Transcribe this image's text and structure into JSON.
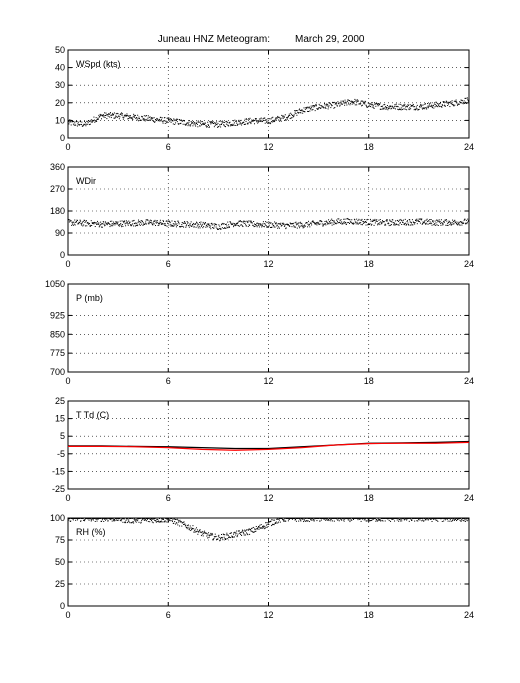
{
  "title_station": "Juneau HNZ Meteogram:",
  "title_date": "March 29, 2000",
  "chart_data": [
    {
      "type": "scatter",
      "label": "WSpd (kts)",
      "xlim": [
        0,
        24
      ],
      "xticks": [
        "0",
        "6",
        "12",
        "18",
        "24"
      ],
      "ylim": [
        0,
        50
      ],
      "yticks": [
        "0",
        "10",
        "20",
        "30",
        "40",
        "50"
      ],
      "grid": true,
      "series": [
        {
          "color": "#000000",
          "x": [
            0,
            1,
            2,
            3,
            4,
            5,
            6,
            7,
            8,
            9,
            10,
            11,
            12,
            13,
            14,
            15,
            16,
            17,
            18,
            19,
            20,
            21,
            22,
            23,
            24
          ],
          "y": [
            9,
            8,
            13,
            13,
            12,
            11,
            10,
            9,
            8,
            8,
            9,
            10,
            10,
            12,
            16,
            18,
            19,
            21,
            19,
            18,
            18,
            18,
            19,
            20,
            22
          ]
        }
      ]
    },
    {
      "type": "scatter",
      "label": "WDir",
      "xlim": [
        0,
        24
      ],
      "xticks": [
        "0",
        "6",
        "12",
        "18",
        "24"
      ],
      "ylim": [
        0,
        360
      ],
      "yticks": [
        "0",
        "90",
        "180",
        "270",
        "360"
      ],
      "grid": true,
      "series": [
        {
          "color": "#000000",
          "x": [
            0,
            1,
            2,
            3,
            4,
            5,
            6,
            7,
            8,
            9,
            10,
            11,
            12,
            13,
            14,
            15,
            16,
            17,
            18,
            19,
            20,
            21,
            22,
            23,
            24
          ],
          "y": [
            135,
            132,
            128,
            130,
            133,
            135,
            130,
            128,
            125,
            118,
            132,
            128,
            126,
            122,
            125,
            132,
            138,
            140,
            136,
            134,
            136,
            138,
            135,
            135,
            138
          ]
        }
      ]
    },
    {
      "type": "line",
      "label": "P (mb)",
      "xlim": [
        0,
        24
      ],
      "xticks": [
        "0",
        "6",
        "12",
        "18",
        "24"
      ],
      "ylim": [
        700,
        1050
      ],
      "yticks": [
        "700",
        "775",
        "850",
        "925",
        "1050"
      ],
      "grid": true,
      "series": []
    },
    {
      "type": "line",
      "label": "T Td (C)",
      "xlim": [
        0,
        24
      ],
      "xticks": [
        "0",
        "6",
        "12",
        "18",
        "24"
      ],
      "ylim": [
        -25,
        25
      ],
      "yticks": [
        "-25",
        "-15",
        "-5",
        "5",
        "15",
        "25"
      ],
      "grid": true,
      "series": [
        {
          "color": "#000000",
          "x": [
            0,
            2,
            4,
            6,
            8,
            10,
            12,
            14,
            16,
            18,
            20,
            22,
            24
          ],
          "y": [
            -0.5,
            -0.5,
            -0.8,
            -1.0,
            -1.5,
            -2.0,
            -2.0,
            -1.0,
            0.0,
            1.0,
            1.2,
            1.5,
            2.0
          ]
        },
        {
          "color": "#ff0000",
          "x": [
            0,
            2,
            4,
            6,
            8,
            10,
            12,
            14,
            16,
            18,
            20,
            22,
            24
          ],
          "y": [
            -0.8,
            -0.8,
            -1.0,
            -1.5,
            -2.5,
            -3.0,
            -2.5,
            -1.5,
            0.0,
            0.8,
            1.0,
            1.0,
            1.5
          ]
        }
      ]
    },
    {
      "type": "scatter",
      "label": "RH (%)",
      "xlim": [
        0,
        24
      ],
      "xticks": [
        "0",
        "6",
        "12",
        "18",
        "24"
      ],
      "ylim": [
        0,
        100
      ],
      "yticks": [
        "0",
        "25",
        "50",
        "75",
        "100"
      ],
      "grid": true,
      "series": [
        {
          "color": "#000000",
          "x": [
            0,
            1,
            2,
            3,
            3.5,
            6,
            6.5,
            7,
            7.5,
            8,
            8.5,
            9,
            9.5,
            10,
            10.5,
            11,
            11.5,
            12,
            12.5,
            13,
            18,
            24
          ],
          "y": [
            100,
            100,
            100,
            100,
            98,
            99,
            96,
            92,
            88,
            83,
            80,
            78,
            80,
            82,
            84,
            86,
            90,
            94,
            98,
            100,
            100,
            100
          ]
        }
      ]
    }
  ]
}
